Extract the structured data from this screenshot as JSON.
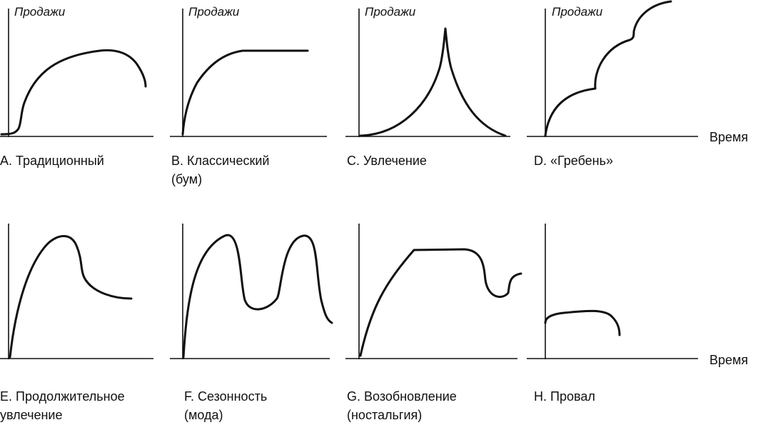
{
  "axis_labels": {
    "y": "Продажи",
    "x": "Время"
  },
  "panels": [
    {
      "id": "A",
      "caption": [
        "A. Традиционный"
      ]
    },
    {
      "id": "B",
      "caption": [
        "B. Классический",
        "(бум)"
      ]
    },
    {
      "id": "C",
      "caption": [
        "C. Увлечение"
      ]
    },
    {
      "id": "D",
      "caption": [
        "D. «Гребень»"
      ]
    },
    {
      "id": "E",
      "caption": [
        "E. Продолжительное",
        "увлечение"
      ]
    },
    {
      "id": "F",
      "caption": [
        "F. Сезонность",
        "(мода)"
      ]
    },
    {
      "id": "G",
      "caption": [
        "G. Возобновление",
        "(ностальгия)"
      ]
    },
    {
      "id": "H",
      "caption": [
        "H. Провал"
      ]
    }
  ]
}
